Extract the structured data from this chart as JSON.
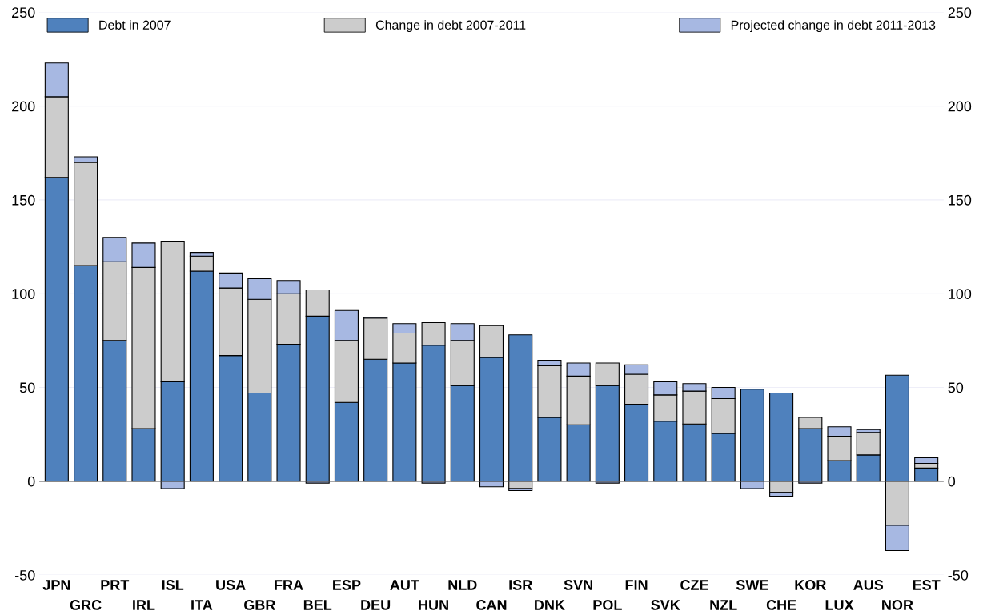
{
  "chart_data": {
    "type": "bar",
    "stacked": true,
    "categories": [
      "JPN",
      "GRC",
      "PRT",
      "IRL",
      "ISL",
      "ITA",
      "USA",
      "GBR",
      "FRA",
      "BEL",
      "ESP",
      "DEU",
      "AUT",
      "HUN",
      "NLD",
      "CAN",
      "ISR",
      "DNK",
      "SVN",
      "POL",
      "FIN",
      "SVK",
      "CZE",
      "NZL",
      "SWE",
      "CHE",
      "KOR",
      "LUX",
      "AUS",
      "NOR",
      "EST"
    ],
    "series": [
      {
        "name": "Debt in 2007",
        "color": "#4f81bd",
        "values": [
          162,
          115,
          75,
          28,
          53,
          112,
          67,
          47,
          73,
          88,
          42,
          65,
          63,
          72.5,
          51,
          66,
          78,
          34,
          30,
          51,
          41,
          32,
          30.5,
          25.5,
          49,
          47,
          28,
          11,
          14,
          56.5,
          7
        ]
      },
      {
        "name": "Change in debt 2007-2011",
        "color": "#cccccc",
        "values": [
          43,
          55,
          42,
          86,
          75,
          8,
          36,
          50,
          27,
          14,
          33,
          22,
          16,
          12,
          24,
          17,
          -4,
          27.5,
          26,
          12,
          16,
          14,
          17.5,
          18.5,
          null,
          -6,
          6,
          13,
          12,
          -23.5,
          2.5
        ]
      },
      {
        "name": "Projected change in debt 2011-2013",
        "color": "#a7b8e2",
        "values": [
          18,
          3,
          13,
          13,
          -4,
          2,
          8,
          11,
          7,
          -1,
          16,
          0.5,
          5,
          -1,
          9,
          -3,
          -1,
          3,
          7,
          -1,
          5,
          7,
          4,
          6,
          -4,
          -2,
          -1,
          5,
          1.5,
          -13.5,
          3
        ]
      }
    ],
    "ylim": [
      -50,
      250
    ],
    "yticks": [
      -50,
      0,
      50,
      100,
      150,
      200,
      250
    ],
    "y2lim": [
      -50,
      250
    ],
    "y2ticks": [
      -50,
      0,
      50,
      100,
      150,
      200,
      250
    ],
    "grid": "y",
    "legend": "top"
  }
}
